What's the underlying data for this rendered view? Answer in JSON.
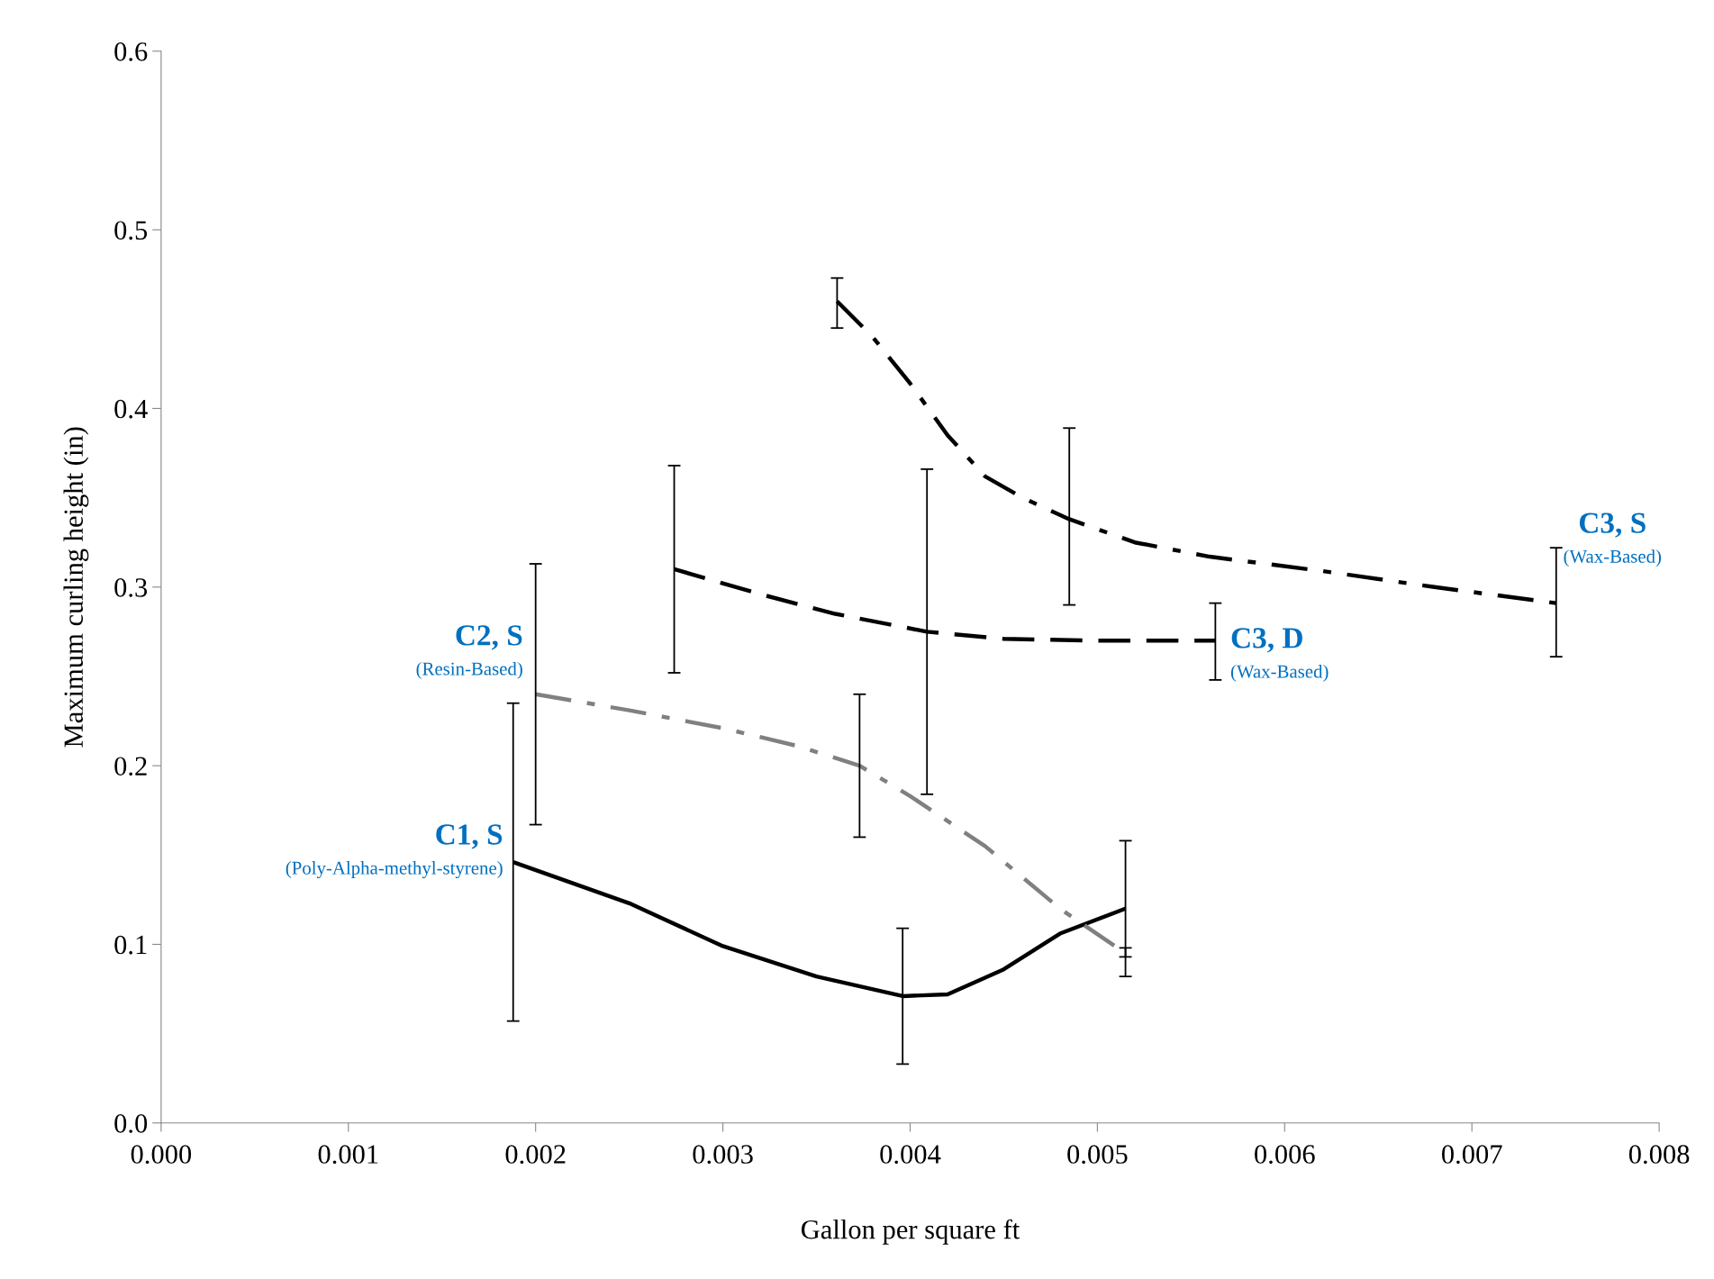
{
  "chart_data": {
    "type": "line",
    "xlabel": "Gallon per square ft",
    "ylabel": "Maximum curling height (in)",
    "xlim": [
      0,
      0.008
    ],
    "xticks": [
      {
        "value": 0,
        "label": "0.000"
      },
      0.001,
      0.002,
      0.003,
      0.004,
      0.005,
      0.006,
      0.007,
      0.008
    ],
    "ylim": [
      0,
      0.6
    ],
    "yticks": [
      {
        "value": 0,
        "label": "0.0"
      },
      0.1,
      0.2,
      0.3,
      0.4,
      0.5,
      0.6
    ],
    "grid": false,
    "legend": false,
    "marker": "none",
    "series": [
      {
        "name": "C1, S",
        "color": "#000000",
        "line_style": "solid",
        "x": [
          0.00188,
          0.0025,
          0.003,
          0.0035,
          0.00396,
          0.0042,
          0.0045,
          0.0048,
          0.00515
        ],
        "values": [
          0.146,
          0.123,
          0.099,
          0.082,
          0.071,
          0.072,
          0.086,
          0.106,
          0.12
        ],
        "errors": [
          [
            0.057,
            0.235
          ],
          null,
          null,
          null,
          [
            0.033,
            0.109
          ],
          null,
          null,
          null,
          [
            0.082,
            0.158
          ]
        ]
      },
      {
        "name": "C2, S",
        "color": "#808080",
        "line_style": "dashdot",
        "x": [
          0.002,
          0.0025,
          0.003,
          0.0034,
          0.00373,
          0.004,
          0.0044,
          0.0048,
          0.00515
        ],
        "values": [
          0.24,
          0.231,
          0.221,
          0.211,
          0.2,
          0.183,
          0.155,
          0.12,
          0.095
        ],
        "errors": [
          [
            0.167,
            0.313
          ],
          null,
          null,
          null,
          [
            0.16,
            0.24
          ],
          null,
          null,
          null,
          [
            0.093,
            0.098
          ]
        ]
      },
      {
        "name": "C3, D",
        "color": "#000000",
        "line_style": "dashed",
        "x": [
          0.00274,
          0.0032,
          0.0036,
          0.00409,
          0.0045,
          0.005,
          0.00563
        ],
        "values": [
          0.31,
          0.296,
          0.285,
          0.275,
          0.271,
          0.27,
          0.27
        ],
        "errors": [
          [
            0.252,
            0.368
          ],
          null,
          null,
          [
            0.184,
            0.366
          ],
          null,
          null,
          [
            0.248,
            0.291
          ]
        ]
      },
      {
        "name": "C3, S",
        "color": "#000000",
        "line_style": "dashdot",
        "x": [
          0.00361,
          0.0038,
          0.004,
          0.0042,
          0.0044,
          0.0046,
          0.00485,
          0.0052,
          0.0056,
          0.0062,
          0.0068,
          0.00745
        ],
        "values": [
          0.46,
          0.44,
          0.414,
          0.385,
          0.362,
          0.35,
          0.338,
          0.325,
          0.317,
          0.309,
          0.3,
          0.291
        ],
        "errors": [
          [
            0.445,
            0.473
          ],
          null,
          null,
          null,
          null,
          null,
          [
            0.29,
            0.389
          ],
          null,
          null,
          null,
          null,
          [
            0.261,
            0.322
          ]
        ]
      }
    ],
    "annotations": [
      "(Poly-Alpha-methyl-styrene)",
      "(Resin-Based)",
      "(Wax-Based)",
      "(Wax-Based)"
    ]
  }
}
